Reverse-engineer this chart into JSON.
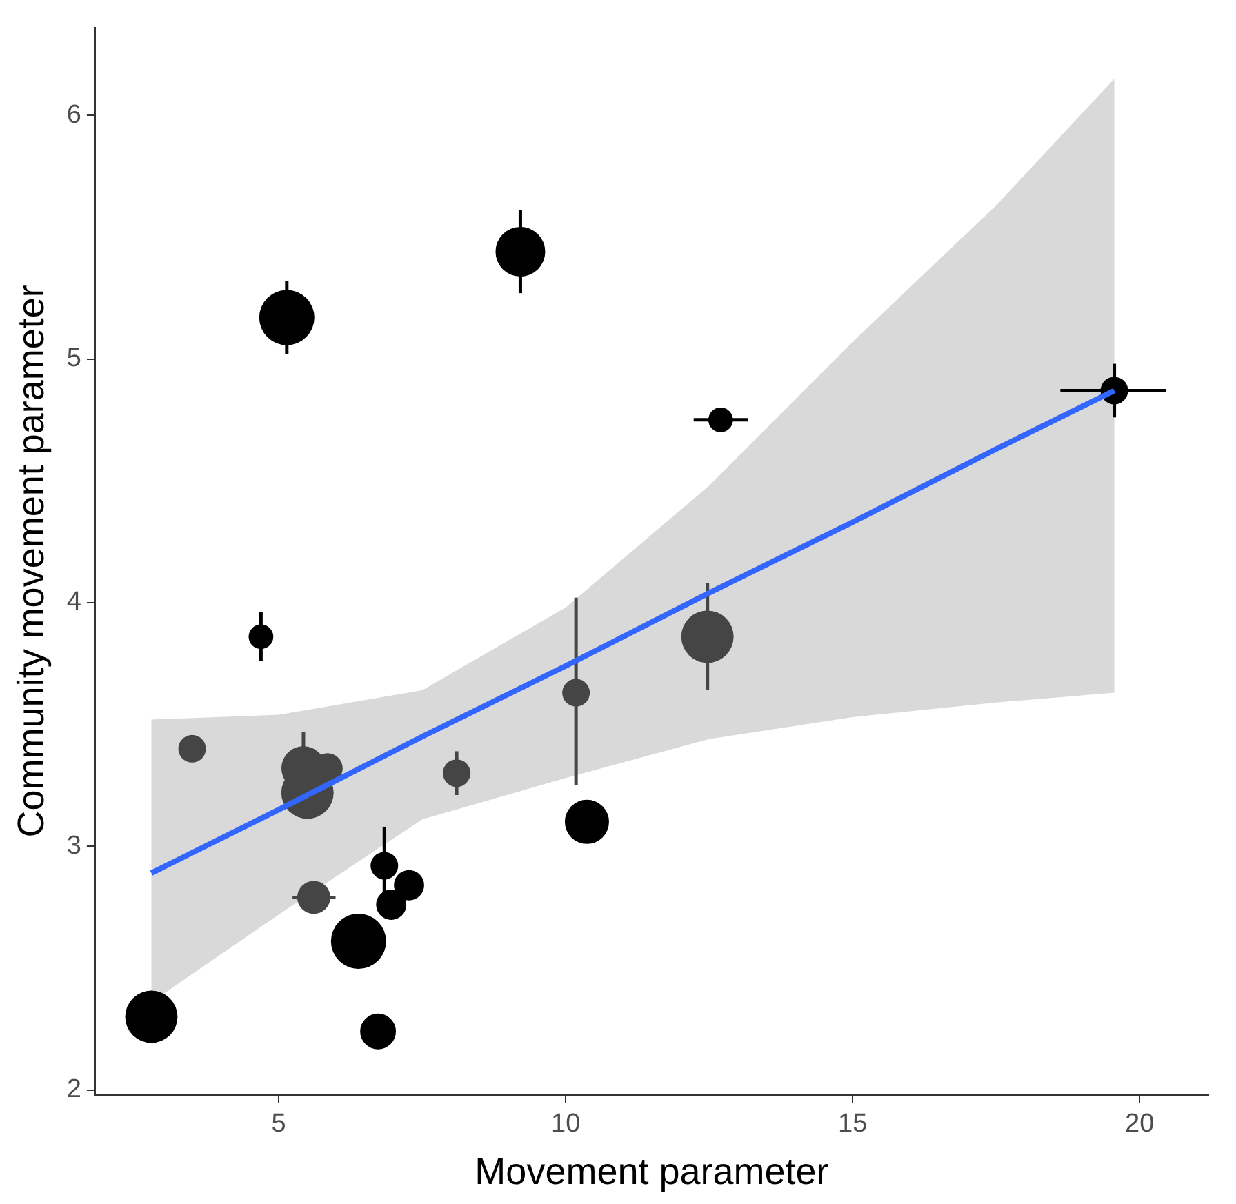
{
  "chart_data": {
    "type": "bubble",
    "xlabel": "Movement parameter",
    "ylabel": "Community movement parameter",
    "xlim": [
      1.8,
      21.2
    ],
    "ylim": [
      1.98,
      6.36
    ],
    "xticks": [
      5,
      10,
      15,
      20
    ],
    "yticks": [
      2,
      3,
      4,
      5,
      6
    ],
    "grid": false,
    "legend": false,
    "series": [
      {
        "type": "bubble",
        "x": [
          2.78,
          3.49,
          4.69,
          5.14,
          9.21,
          5.43,
          5.5,
          5.85,
          8.1,
          10.18,
          10.37,
          12.47,
          12.7,
          19.56,
          5.61,
          6.84,
          7.27,
          6.96,
          6.39,
          6.73
        ],
        "values": [
          2.3,
          3.4,
          3.86,
          5.17,
          5.44,
          3.32,
          3.22,
          3.32,
          3.3,
          3.63,
          3.1,
          3.86,
          4.75,
          4.87,
          2.79,
          2.92,
          2.84,
          2.76,
          2.61,
          2.24
        ],
        "sizes": [
          0.9,
          0.25,
          0.2,
          1,
          0.81,
          0.64,
          0.9,
          0.3,
          0.25,
          0.25,
          0.64,
          0.9,
          0.2,
          0.25,
          0.36,
          0.25,
          0.3,
          0.3,
          1,
          0.42
        ],
        "colors": [
          "#000000",
          "#454545",
          "#000000",
          "#000000",
          "#000000",
          "#454545",
          "#454545",
          "#454545",
          "#454545",
          "#454545",
          "#000000",
          "#454545",
          "#000000",
          "#000000",
          "#454545",
          "#000000",
          "#000000",
          "#000000",
          "#000000",
          "#000000"
        ],
        "errors": [
          null,
          null,
          0.1,
          0.15,
          0.17,
          [
            3.2,
            3.47
          ],
          null,
          null,
          0.09,
          [
            3.25,
            4.02
          ],
          null,
          [
            3.64,
            4.08
          ],
          0.05,
          [
            4.76,
            4.98
          ],
          null,
          [
            2.8,
            3.08
          ],
          null,
          null,
          null,
          null
        ],
        "xerrors": [
          null,
          null,
          null,
          null,
          null,
          null,
          null,
          null,
          null,
          null,
          null,
          null,
          [
            12.23,
            13.18
          ],
          [
            18.62,
            20.46
          ],
          [
            5.24,
            5.99
          ],
          null,
          null,
          [
            6.75,
            7.2
          ],
          null,
          null
        ]
      },
      {
        "type": "line",
        "color": "#3366ff",
        "x": [
          2.78,
          5,
          7.5,
          10,
          12.5,
          15,
          17.5,
          19.56
        ],
        "values": [
          2.89,
          3.15,
          3.45,
          3.74,
          4.04,
          4.33,
          4.63,
          4.87
        ],
        "lower": [
          2.36,
          2.72,
          3.11,
          3.28,
          3.44,
          3.53,
          3.59,
          3.63
        ],
        "upper": [
          3.52,
          3.54,
          3.64,
          3.98,
          4.48,
          5.07,
          5.63,
          6.15
        ]
      }
    ]
  }
}
